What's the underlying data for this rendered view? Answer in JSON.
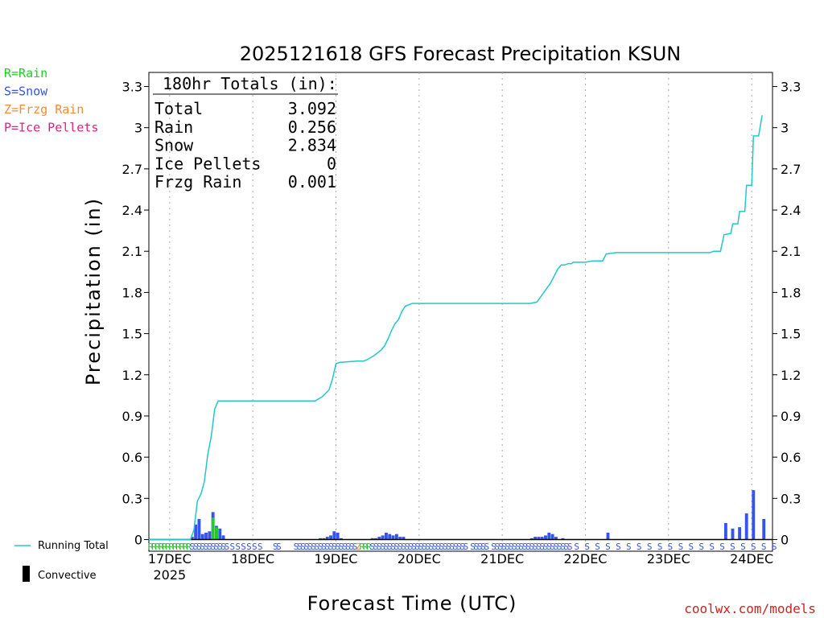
{
  "chart_data": {
    "type": "bar+line",
    "title": "2025121618 GFS Forecast Precipitation KSUN",
    "xlabel": "Forecast Time (UTC)",
    "ylabel": "Precipitation (in)",
    "ylim": [
      0,
      3.4
    ],
    "y_ticks": [
      "0",
      "0.3",
      "0.6",
      "0.9",
      "1.2",
      "1.5",
      "1.8",
      "2.1",
      "2.4",
      "2.7",
      "3",
      "3.3"
    ],
    "x_range_hours": [
      0,
      180
    ],
    "x_ticks": [
      {
        "hour": 6,
        "label": "17DEC",
        "sublabel": "2025"
      },
      {
        "hour": 30,
        "label": "18DEC"
      },
      {
        "hour": 54,
        "label": "19DEC"
      },
      {
        "hour": 78,
        "label": "20DEC"
      },
      {
        "hour": 102,
        "label": "21DEC"
      },
      {
        "hour": 126,
        "label": "22DEC"
      },
      {
        "hour": 150,
        "label": "23DEC"
      },
      {
        "hour": 174,
        "label": "24DEC"
      }
    ],
    "grid": "vertical dotted at day boundaries",
    "legend_types": [
      {
        "label": "R=Rain",
        "color": "#22cc22"
      },
      {
        "label": "S=Snow",
        "color": "#3355ee"
      },
      {
        "label": "Z=Frzg Rain",
        "color": "#ff8833"
      },
      {
        "label": "P=Ice Pellets",
        "color": "#e0207f"
      }
    ],
    "legend_bottom": [
      {
        "label": "Running Total",
        "symbol": "line",
        "color": "#22c8c8"
      },
      {
        "label": "Convective",
        "symbol": "bar",
        "color": "#000000"
      }
    ],
    "totals": {
      "heading": "180hr Totals (in):",
      "rows": [
        {
          "label": "Total",
          "value": "3.092"
        },
        {
          "label": "Rain",
          "value": "0.256"
        },
        {
          "label": "Snow",
          "value": "2.834"
        },
        {
          "label": "Ice Pellets",
          "value": "0"
        },
        {
          "label": "Frzg Rain",
          "value": "0.001"
        }
      ]
    },
    "running_total": {
      "name": "Running Total",
      "color": "#22c8c8",
      "points": [
        [
          0,
          0
        ],
        [
          12,
          0
        ],
        [
          13,
          0.07
        ],
        [
          14,
          0.28
        ],
        [
          15,
          0.33
        ],
        [
          16,
          0.42
        ],
        [
          17,
          0.62
        ],
        [
          18,
          0.75
        ],
        [
          19,
          0.95
        ],
        [
          20,
          1.01
        ],
        [
          25,
          1.01
        ],
        [
          48,
          1.01
        ],
        [
          50,
          1.04
        ],
        [
          52,
          1.09
        ],
        [
          53,
          1.17
        ],
        [
          54,
          1.28
        ],
        [
          55,
          1.29
        ],
        [
          60,
          1.3
        ],
        [
          62,
          1.3
        ],
        [
          63,
          1.31
        ],
        [
          65,
          1.34
        ],
        [
          67,
          1.38
        ],
        [
          68,
          1.41
        ],
        [
          69,
          1.46
        ],
        [
          70,
          1.52
        ],
        [
          71,
          1.57
        ],
        [
          72,
          1.6
        ],
        [
          73,
          1.66
        ],
        [
          74,
          1.7
        ],
        [
          75,
          1.71
        ],
        [
          76,
          1.72
        ],
        [
          110,
          1.72
        ],
        [
          112,
          1.73
        ],
        [
          114,
          1.8
        ],
        [
          116,
          1.87
        ],
        [
          117,
          1.92
        ],
        [
          118,
          1.97
        ],
        [
          119,
          2.0
        ],
        [
          120,
          2.0
        ],
        [
          121,
          2.01
        ],
        [
          122,
          2.01
        ],
        [
          122.5,
          2.02
        ],
        [
          126,
          2.02
        ],
        [
          128,
          2.03
        ],
        [
          131,
          2.03
        ],
        [
          132,
          2.08
        ],
        [
          135,
          2.09
        ],
        [
          162,
          2.09
        ],
        [
          163,
          2.1
        ],
        [
          165,
          2.1
        ],
        [
          166,
          2.22
        ],
        [
          168,
          2.23
        ],
        [
          168.5,
          2.3
        ],
        [
          170,
          2.3
        ],
        [
          170.5,
          2.39
        ],
        [
          172,
          2.39
        ],
        [
          172.5,
          2.58
        ],
        [
          174,
          2.58
        ],
        [
          174.5,
          2.94
        ],
        [
          176,
          2.94
        ],
        [
          177,
          3.09
        ]
      ]
    },
    "bar_series": [
      {
        "name": "Snow",
        "color": "#3355ee",
        "points": [
          [
            12.5,
            0.02
          ],
          [
            13.5,
            0.11
          ],
          [
            14.5,
            0.15
          ],
          [
            15.5,
            0.04
          ],
          [
            16.5,
            0.05
          ],
          [
            17.5,
            0.06
          ],
          [
            18.5,
            0.2
          ],
          [
            19.5,
            0.1
          ],
          [
            20.5,
            0.08
          ],
          [
            21.5,
            0.03
          ],
          [
            49.5,
            0.01
          ],
          [
            50.5,
            0.01
          ],
          [
            51.5,
            0.02
          ],
          [
            52.5,
            0.03
          ],
          [
            53.5,
            0.06
          ],
          [
            54.5,
            0.05
          ],
          [
            55.5,
            0.01
          ],
          [
            64.5,
            0.01
          ],
          [
            65.5,
            0.01
          ],
          [
            66.5,
            0.02
          ],
          [
            67.5,
            0.03
          ],
          [
            68.5,
            0.05
          ],
          [
            69.5,
            0.04
          ],
          [
            70.5,
            0.03
          ],
          [
            71.5,
            0.04
          ],
          [
            72.5,
            0.02
          ],
          [
            73.5,
            0.02
          ],
          [
            110.5,
            0.01
          ],
          [
            111.5,
            0.02
          ],
          [
            112.5,
            0.02
          ],
          [
            113.5,
            0.02
          ],
          [
            114.5,
            0.03
          ],
          [
            115.5,
            0.05
          ],
          [
            116.5,
            0.04
          ],
          [
            117.5,
            0.02
          ],
          [
            119.5,
            0.01
          ],
          [
            132.5,
            0.05
          ],
          [
            166.5,
            0.12
          ],
          [
            168.5,
            0.08
          ],
          [
            170.5,
            0.09
          ],
          [
            172.5,
            0.19
          ],
          [
            174.5,
            0.36
          ],
          [
            177.5,
            0.15
          ]
        ]
      },
      {
        "name": "Rain",
        "color": "#22cc22",
        "points": [
          [
            18.5,
            0.16
          ],
          [
            19.5,
            0.09
          ]
        ]
      }
    ],
    "ptype_markers": [
      {
        "from_hour": 0,
        "to_hour": 12,
        "letter": "R",
        "color": "#22cc22",
        "step": 1
      },
      {
        "from_hour": 12,
        "to_hour": 22,
        "letter": "S",
        "color": "#3355ee",
        "step": 1
      },
      {
        "from_hour": 22,
        "to_hour": 32,
        "letter": "S",
        "color": "#3355ee",
        "step": 1.6
      },
      {
        "from_hour": 36,
        "to_hour": 38,
        "letter": "S",
        "color": "#3355ee",
        "step": 1
      },
      {
        "from_hour": 42,
        "to_hour": 60,
        "letter": "S",
        "color": "#3355ee",
        "step": 1
      },
      {
        "from_hour": 60,
        "to_hour": 61,
        "letter": "Z",
        "color": "#ff8833",
        "step": 1
      },
      {
        "from_hour": 61,
        "to_hour": 64,
        "letter": "R",
        "color": "#22cc22",
        "step": 1
      },
      {
        "from_hour": 64,
        "to_hour": 92,
        "letter": "S",
        "color": "#3355ee",
        "step": 1
      },
      {
        "from_hour": 93,
        "to_hour": 98,
        "letter": "S",
        "color": "#3355ee",
        "step": 1
      },
      {
        "from_hour": 99,
        "to_hour": 104,
        "letter": "S",
        "color": "#3355ee",
        "step": 1
      },
      {
        "from_hour": 104,
        "to_hour": 122,
        "letter": "S",
        "color": "#3355ee",
        "step": 1
      },
      {
        "from_hour": 123,
        "to_hour": 181,
        "letter": "S",
        "color": "#3355ee",
        "step": 3
      }
    ]
  },
  "footer": {
    "credit": "coolwx.com/models",
    "credit_color": "#cc2222"
  }
}
